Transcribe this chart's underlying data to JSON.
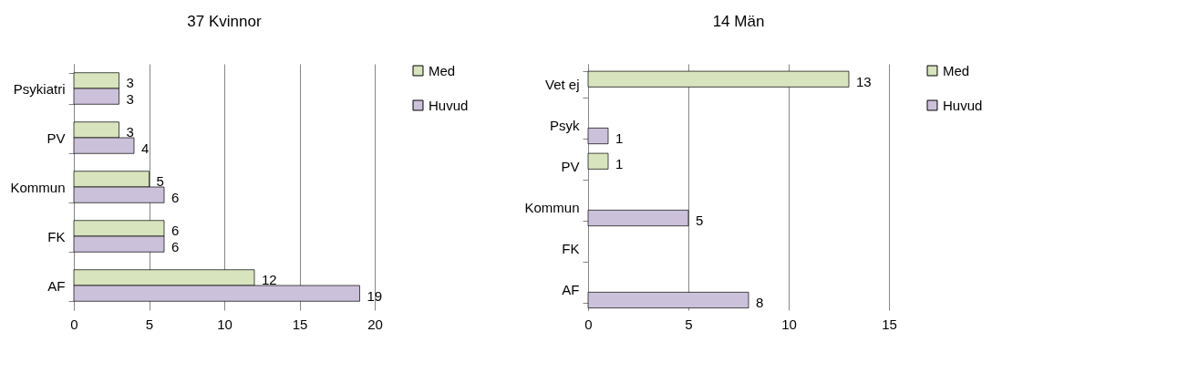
{
  "chart_data": [
    {
      "type": "bar",
      "orientation": "horizontal",
      "title": "37 Kvinnor",
      "categories": [
        "Psykiatri",
        "PV",
        "Kommun",
        "FK",
        "AF"
      ],
      "series": [
        {
          "name": "Med",
          "color": "#d7e4bd",
          "values": [
            3,
            3,
            5,
            6,
            12
          ]
        },
        {
          "name": "Huvud",
          "color": "#ccc1da",
          "values": [
            3,
            4,
            6,
            6,
            19
          ]
        }
      ],
      "xlim": [
        0,
        20
      ],
      "xticks": [
        0,
        5,
        10,
        15,
        20
      ],
      "grid": "x",
      "legend": "right",
      "data_labels": true
    },
    {
      "type": "bar",
      "orientation": "horizontal",
      "title": "14 Män",
      "categories": [
        "Vet ej",
        "Psyk",
        "PV",
        "Kommun",
        "FK",
        "AF"
      ],
      "series": [
        {
          "name": "Med",
          "color": "#d7e4bd",
          "values": [
            13,
            null,
            1,
            null,
            null,
            null
          ]
        },
        {
          "name": "Huvud",
          "color": "#ccc1da",
          "values": [
            null,
            1,
            null,
            5,
            null,
            8
          ]
        }
      ],
      "xlim": [
        0,
        15
      ],
      "xticks": [
        0,
        5,
        10,
        15
      ],
      "grid": "x",
      "legend": "right",
      "data_labels": true
    }
  ]
}
